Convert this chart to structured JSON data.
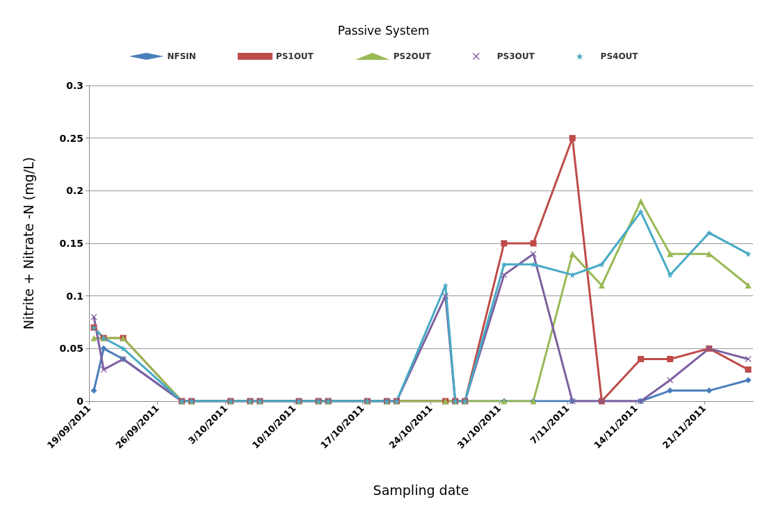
{
  "chart_data": {
    "type": "line",
    "title": "Passive System",
    "xlabel": "Sampling date",
    "ylabel": "Nitrite + Nitrate -N (mg/L)",
    "x": [
      "2011-09-19T12:00",
      "2011-09-20T12:00",
      "2011-09-22T12:00",
      "2011-09-28T12:00",
      "2011-09-29T12:00",
      "2011-10-03T12:00",
      "2011-10-05T12:00",
      "2011-10-06T12:00",
      "2011-10-10T12:00",
      "2011-10-12T12:00",
      "2011-10-13T12:00",
      "2011-10-17T12:00",
      "2011-10-19T12:00",
      "2011-10-20T12:00",
      "2011-10-25T12:00",
      "2011-10-26T12:00",
      "2011-10-27T12:00",
      "2011-10-31T12:00",
      "2011-11-03T12:00",
      "2011-11-07T12:00",
      "2011-11-10T12:00",
      "2011-11-14T12:00",
      "2011-11-17T12:00",
      "2011-11-21T12:00",
      "2011-11-25T12:00"
    ],
    "series": [
      {
        "name": "NFSIN",
        "color": "#4a7ebb",
        "marker": "diamond",
        "values": [
          0.01,
          0.05,
          0.04,
          0,
          0,
          0,
          0,
          0,
          0,
          0,
          0,
          0,
          0,
          0,
          0,
          0,
          0,
          0,
          0,
          0,
          0,
          0,
          0.01,
          0.01,
          0.02
        ]
      },
      {
        "name": "PS1OUT",
        "color": "#be4b48",
        "marker": "square",
        "values": [
          0.07,
          0.06,
          0.06,
          0,
          0,
          0,
          0,
          0,
          0,
          0,
          0,
          0,
          0,
          0,
          0,
          0,
          0,
          0.15,
          0.15,
          0.25,
          0,
          0.04,
          0.04,
          0.05,
          0.03
        ]
      },
      {
        "name": "PS2OUT",
        "color": "#98b954",
        "marker": "triangle",
        "values": [
          0.06,
          0.06,
          0.06,
          0,
          0,
          0,
          0,
          0,
          0,
          0,
          0,
          0,
          0,
          0,
          0,
          0,
          0,
          0,
          0,
          0.14,
          0.11,
          0.19,
          0.14,
          0.14,
          0.11
        ]
      },
      {
        "name": "PS3OUT",
        "color": "#7d60a0",
        "marker": "cross",
        "values": [
          0.08,
          0.03,
          0.04,
          0,
          0,
          0,
          0,
          0,
          0,
          0,
          0,
          0,
          0,
          0,
          0.1,
          0,
          0,
          0.12,
          0.14,
          0,
          0,
          0,
          0.02,
          0.05,
          0.04
        ]
      },
      {
        "name": "PS4OUT",
        "color": "#46aac5",
        "marker": "star",
        "values": [
          0.07,
          0.06,
          0.05,
          0,
          0,
          0,
          0,
          0,
          0,
          0,
          0,
          0,
          0,
          0,
          0.11,
          0,
          0,
          0.13,
          0.13,
          0.12,
          0.13,
          0.18,
          0.12,
          0.16,
          0.14
        ]
      }
    ],
    "xlim": [
      "2011-09-19",
      "2011-11-26"
    ],
    "xticks": [
      {
        "value": "2011-09-19",
        "label": "19/09/2011"
      },
      {
        "value": "2011-09-26",
        "label": "26/09/2011"
      },
      {
        "value": "2011-10-03",
        "label": "3/10/2011"
      },
      {
        "value": "2011-10-10",
        "label": "10/10/2011"
      },
      {
        "value": "2011-10-17",
        "label": "17/10/2011"
      },
      {
        "value": "2011-10-24",
        "label": "24/10/2011"
      },
      {
        "value": "2011-10-31",
        "label": "31/10/2011"
      },
      {
        "value": "2011-11-07",
        "label": "7/11/2011"
      },
      {
        "value": "2011-11-14",
        "label": "14/11/2011"
      },
      {
        "value": "2011-11-21",
        "label": "21/11/2011"
      }
    ],
    "ylim": [
      0,
      0.3
    ],
    "yticks": [
      0,
      0.05,
      0.1,
      0.15,
      0.2,
      0.25,
      0.3
    ],
    "grid": "y",
    "legend": "top",
    "line_style": "solid"
  }
}
